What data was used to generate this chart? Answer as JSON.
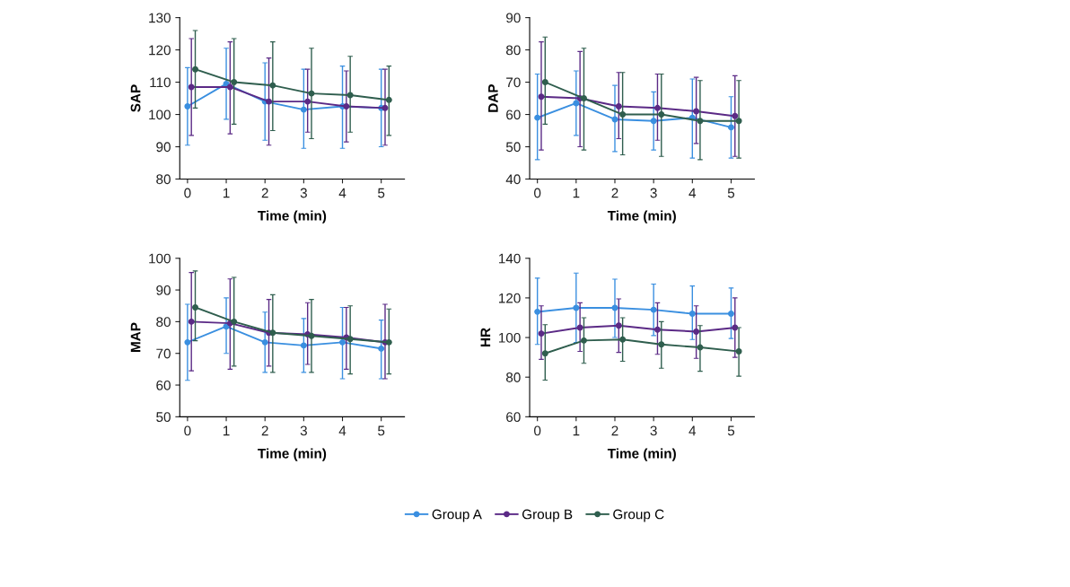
{
  "chart_data": [
    {
      "type": "line",
      "ylabel": "SAP",
      "xlabel": "Time (min)",
      "xlim": [
        -0.2,
        5.6
      ],
      "xticks": [
        0,
        1,
        2,
        3,
        4,
        5
      ],
      "ylim": [
        80,
        130
      ],
      "yticks": [
        80,
        90,
        100,
        110,
        120,
        130
      ],
      "marker": "circle",
      "grid": false,
      "legend": "bottom",
      "series": [
        {
          "name": "Group A",
          "color": "#3a8fe0",
          "x": [
            0,
            1,
            2,
            3,
            4,
            5
          ],
          "values": [
            102.5,
            109.5,
            104,
            101.5,
            102.5,
            102
          ],
          "errors": [
            [
              90.5,
              114.5
            ],
            [
              98.5,
              120.5
            ],
            [
              92,
              116
            ],
            [
              89.5,
              114
            ],
            [
              89.5,
              115
            ],
            [
              90,
              114
            ]
          ]
        },
        {
          "name": "Group B",
          "color": "#5b2a86",
          "x": [
            0.1,
            1.1,
            2.1,
            3.1,
            4.1,
            5.1
          ],
          "values": [
            108.5,
            108.5,
            104,
            104,
            102.5,
            102
          ],
          "errors": [
            [
              93.5,
              123.5
            ],
            [
              94,
              122.5
            ],
            [
              90.5,
              117.5
            ],
            [
              94.5,
              114
            ],
            [
              91.5,
              113.5
            ],
            [
              90.5,
              114
            ]
          ]
        },
        {
          "name": "Group C",
          "color": "#2f5e4e",
          "x": [
            0.2,
            1.2,
            2.2,
            3.2,
            4.2,
            5.2
          ],
          "values": [
            114,
            110,
            109,
            106.5,
            106,
            104.5
          ],
          "errors": [
            [
              102,
              126
            ],
            [
              97,
              123.5
            ],
            [
              95,
              122.5
            ],
            [
              92.5,
              120.5
            ],
            [
              94.5,
              118
            ],
            [
              93.5,
              115
            ]
          ]
        }
      ]
    },
    {
      "type": "line",
      "ylabel": "DAP",
      "xlabel": "Time (min)",
      "xlim": [
        -0.2,
        5.6
      ],
      "xticks": [
        0,
        1,
        2,
        3,
        4,
        5
      ],
      "ylim": [
        40,
        90
      ],
      "yticks": [
        40,
        50,
        60,
        70,
        80,
        90
      ],
      "marker": "circle",
      "grid": false,
      "legend": false,
      "series": [
        {
          "color": "#3a8fe0",
          "x": [
            0,
            1,
            2,
            3,
            4,
            5
          ],
          "values": [
            59,
            63.5,
            58.5,
            58,
            59,
            56
          ],
          "errors": [
            [
              46,
              72.5
            ],
            [
              53.5,
              73.5
            ],
            [
              48.5,
              69
            ],
            [
              49,
              67
            ],
            [
              46.5,
              71
            ],
            [
              46.5,
              65.5
            ]
          ]
        },
        {
          "color": "#5b2a86",
          "x": [
            0.1,
            1.1,
            2.1,
            3.1,
            4.1,
            5.1
          ],
          "values": [
            65.5,
            65,
            62.5,
            62,
            61,
            59.5
          ],
          "errors": [
            [
              49,
              82.5
            ],
            [
              50,
              79.5
            ],
            [
              52.5,
              73
            ],
            [
              52,
              72.5
            ],
            [
              51,
              71.5
            ],
            [
              47,
              72
            ]
          ]
        },
        {
          "color": "#2f5e4e",
          "x": [
            0.2,
            1.2,
            2.2,
            3.2,
            4.2,
            5.2
          ],
          "values": [
            70,
            65,
            60,
            60,
            58,
            58
          ],
          "errors": [
            [
              57,
              84
            ],
            [
              49,
              80.5
            ],
            [
              47.5,
              73
            ],
            [
              47,
              72.5
            ],
            [
              46,
              70.5
            ],
            [
              46.5,
              70.5
            ]
          ]
        }
      ]
    },
    {
      "type": "line",
      "ylabel": "MAP",
      "xlabel": "Time (min)",
      "xlim": [
        -0.2,
        5.6
      ],
      "xticks": [
        0,
        1,
        2,
        3,
        4,
        5
      ],
      "ylim": [
        50,
        100
      ],
      "yticks": [
        50,
        60,
        70,
        80,
        90,
        100
      ],
      "marker": "circle",
      "grid": false,
      "legend": false,
      "series": [
        {
          "color": "#3a8fe0",
          "x": [
            0,
            1,
            2,
            3,
            4,
            5
          ],
          "values": [
            73.5,
            78.5,
            73.5,
            72.5,
            73.5,
            71.5
          ],
          "errors": [
            [
              61.5,
              85.5
            ],
            [
              70,
              87.5
            ],
            [
              64,
              83
            ],
            [
              64,
              81
            ],
            [
              62,
              84.5
            ],
            [
              62,
              80.5
            ]
          ]
        },
        {
          "color": "#5b2a86",
          "x": [
            0.1,
            1.1,
            2.1,
            3.1,
            4.1,
            5.1
          ],
          "values": [
            80,
            79.5,
            76.5,
            76,
            75,
            73.5
          ],
          "errors": [
            [
              64.5,
              95.5
            ],
            [
              65,
              93.5
            ],
            [
              66,
              87
            ],
            [
              66.5,
              86
            ],
            [
              65,
              84.5
            ],
            [
              62,
              85.5
            ]
          ]
        },
        {
          "color": "#2f5e4e",
          "x": [
            0.2,
            1.2,
            2.2,
            3.2,
            4.2,
            5.2
          ],
          "values": [
            84.5,
            80,
            76.5,
            75.5,
            74.5,
            73.5
          ],
          "errors": [
            [
              74,
              96
            ],
            [
              66,
              94
            ],
            [
              64,
              88.5
            ],
            [
              64,
              87
            ],
            [
              63.5,
              85
            ],
            [
              63.5,
              84
            ]
          ]
        }
      ]
    },
    {
      "type": "line",
      "ylabel": "HR",
      "xlabel": "Time (min)",
      "xlim": [
        -0.2,
        5.6
      ],
      "xticks": [
        0,
        1,
        2,
        3,
        4,
        5
      ],
      "ylim": [
        60,
        140
      ],
      "yticks": [
        60,
        80,
        100,
        120,
        140
      ],
      "marker": "circle",
      "grid": false,
      "legend": false,
      "series": [
        {
          "color": "#3a8fe0",
          "x": [
            0,
            1,
            2,
            3,
            4,
            5
          ],
          "values": [
            113,
            115,
            115,
            114,
            112,
            112
          ],
          "errors": [
            [
              96.5,
              130
            ],
            [
              97.5,
              132.5
            ],
            [
              100,
              129.5
            ],
            [
              101,
              127
            ],
            [
              99,
              126
            ],
            [
              99.5,
              125
            ]
          ]
        },
        {
          "color": "#5b2a86",
          "x": [
            0.1,
            1.1,
            2.1,
            3.1,
            4.1,
            5.1
          ],
          "values": [
            102,
            105,
            106,
            104,
            103,
            105
          ],
          "errors": [
            [
              89,
              116
            ],
            [
              93,
              117.5
            ],
            [
              92.5,
              119.5
            ],
            [
              91.5,
              117.5
            ],
            [
              89.5,
              116
            ],
            [
              90,
              120
            ]
          ]
        },
        {
          "color": "#2f5e4e",
          "x": [
            0.2,
            1.2,
            2.2,
            3.2,
            4.2,
            5.2
          ],
          "values": [
            92,
            98.5,
            99,
            96.5,
            95,
            93
          ],
          "errors": [
            [
              78.5,
              106.5
            ],
            [
              87,
              110
            ],
            [
              88,
              110
            ],
            [
              84.5,
              108
            ],
            [
              83,
              106
            ],
            [
              80.5,
              105
            ]
          ]
        }
      ]
    }
  ]
}
